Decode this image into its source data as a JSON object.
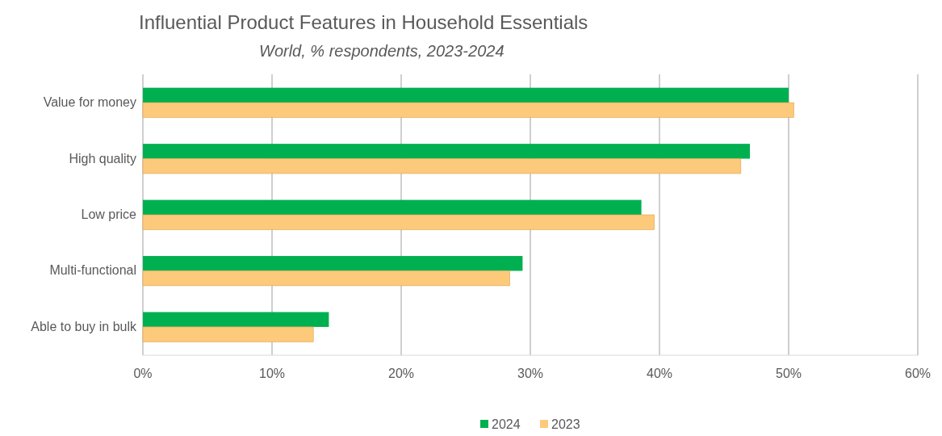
{
  "chart_data": {
    "type": "bar",
    "orientation": "horizontal",
    "title": "Influential Product Features in Household Essentials",
    "subtitle": "World, % respondents, 2023-2024",
    "categories": [
      "Value for money",
      "High quality",
      "Low price",
      "Multi-functional",
      "Able to buy in bulk"
    ],
    "series": [
      {
        "name": "2024",
        "color": "#00b050",
        "values": [
          50.0,
          47.0,
          38.6,
          29.4,
          14.4
        ]
      },
      {
        "name": "2023",
        "color": "#fdc97a",
        "values": [
          50.4,
          46.3,
          39.6,
          28.4,
          13.2
        ]
      }
    ],
    "xlim": [
      0,
      60
    ],
    "xticks": [
      {
        "value": 0,
        "label": "0%"
      },
      {
        "value": 10,
        "label": "10%"
      },
      {
        "value": 20,
        "label": "20%"
      },
      {
        "value": 30,
        "label": "30%"
      },
      {
        "value": 40,
        "label": "40%"
      },
      {
        "value": 50,
        "label": "50%"
      },
      {
        "value": 60,
        "label": "60%"
      }
    ],
    "grid": "x",
    "legend": "bottom"
  }
}
